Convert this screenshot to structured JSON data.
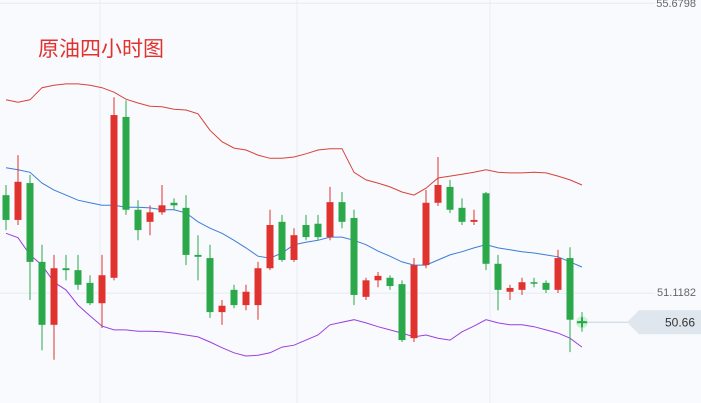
{
  "chart_data": {
    "type": "candlestick",
    "title": "原油四小时图",
    "open": [
      52.66,
      52.27,
      52.85,
      51.61,
      50.62,
      51.51,
      51.48,
      51.28,
      50.96,
      51.36,
      53.89,
      52.43,
      52.24,
      52.39,
      52.54,
      52.46,
      51.72,
      51.67,
      50.82,
      51.17,
      50.93,
      50.93,
      51.51,
      52.24,
      51.64,
      52.19,
      52.21,
      52.0,
      52.55,
      52.3,
      51.06,
      51.32,
      51.36,
      51.26,
      50.41,
      51.56,
      52.54,
      52.79,
      52.46,
      52.24,
      52.69,
      51.58,
      51.14,
      51.17,
      51.29,
      51.28,
      51.17,
      51.67,
      50.68
    ],
    "close": [
      52.27,
      52.87,
      51.61,
      50.62,
      51.51,
      51.48,
      51.25,
      50.96,
      51.4,
      53.92,
      52.43,
      52.11,
      52.39,
      52.5,
      52.5,
      51.72,
      51.69,
      50.82,
      50.92,
      50.93,
      51.14,
      51.51,
      52.19,
      51.64,
      52.03,
      52.0,
      52.0,
      52.55,
      52.24,
      51.09,
      51.32,
      51.39,
      51.23,
      50.38,
      51.56,
      52.54,
      52.82,
      52.43,
      52.24,
      52.27,
      51.58,
      51.17,
      51.2,
      51.29,
      51.28,
      51.17,
      51.67,
      50.7,
      50.66
    ],
    "high": [
      52.82,
      53.29,
      52.98,
      51.88,
      51.72,
      51.72,
      51.72,
      51.4,
      51.72,
      54.2,
      54.15,
      52.58,
      52.5,
      52.82,
      52.61,
      52.66,
      52.03,
      51.88,
      51.01,
      51.25,
      51.25,
      51.61,
      52.43,
      52.35,
      52.14,
      52.35,
      52.35,
      52.79,
      52.71,
      52.43,
      51.36,
      51.45,
      51.4,
      51.32,
      51.67,
      52.74,
      53.26,
      52.9,
      52.61,
      52.43,
      52.71,
      51.72,
      51.25,
      51.36,
      51.36,
      51.32,
      51.8,
      51.84,
      50.82
    ],
    "low": [
      52.11,
      52.19,
      51.01,
      50.22,
      50.07,
      51.32,
      51.17,
      50.93,
      50.57,
      51.32,
      52.35,
      51.95,
      52.03,
      52.35,
      52.43,
      51.56,
      51.32,
      50.73,
      50.62,
      50.88,
      50.85,
      50.7,
      51.48,
      51.61,
      51.61,
      51.95,
      51.95,
      51.95,
      52.14,
      50.93,
      51.01,
      51.21,
      51.17,
      50.35,
      50.35,
      51.51,
      52.49,
      52.38,
      52.19,
      52.19,
      51.48,
      50.85,
      51.01,
      51.09,
      51.21,
      51.12,
      51.12,
      50.19,
      50.51
    ],
    "up_color": "#e0322f",
    "down_color": "#2ba84a",
    "lines": [
      {
        "color": "#d9423a",
        "values": [
          54.16,
          54.12,
          54.16,
          54.35,
          54.39,
          54.41,
          54.41,
          54.39,
          54.35,
          54.28,
          54.17,
          54.11,
          54.06,
          54.05,
          54.01,
          54.0,
          53.94,
          53.68,
          53.5,
          53.4,
          53.37,
          53.29,
          53.24,
          53.24,
          53.26,
          53.31,
          53.37,
          53.39,
          53.39,
          53.02,
          52.9,
          52.85,
          52.79,
          52.71,
          52.66,
          52.77,
          52.93,
          52.96,
          52.99,
          53.02,
          53.06,
          53.02,
          53.01,
          53.01,
          53.02,
          53.01,
          52.96,
          52.9,
          52.82
        ]
      },
      {
        "color": "#3b7dd8",
        "values": [
          53.09,
          53.06,
          53.02,
          52.85,
          52.74,
          52.66,
          52.58,
          52.54,
          52.5,
          52.5,
          52.47,
          52.47,
          52.46,
          52.43,
          52.43,
          52.38,
          52.24,
          52.14,
          52.06,
          51.95,
          51.83,
          51.7,
          51.67,
          51.75,
          51.88,
          51.92,
          51.95,
          52.0,
          52.0,
          51.95,
          51.88,
          51.78,
          51.7,
          51.61,
          51.56,
          51.56,
          51.64,
          51.72,
          51.77,
          51.83,
          51.88,
          51.83,
          51.8,
          51.77,
          51.75,
          51.72,
          51.69,
          51.61,
          51.53
        ]
      },
      {
        "color": "#9b3fe0",
        "values": [
          52.06,
          51.99,
          51.72,
          51.56,
          51.29,
          51.17,
          50.93,
          50.76,
          50.6,
          50.54,
          50.54,
          50.52,
          50.52,
          50.51,
          50.49,
          50.46,
          50.43,
          50.35,
          50.26,
          50.18,
          50.13,
          50.14,
          50.18,
          50.27,
          50.3,
          50.38,
          50.46,
          50.62,
          50.66,
          50.7,
          50.65,
          50.59,
          50.54,
          50.49,
          50.43,
          50.46,
          50.41,
          50.38,
          50.51,
          50.6,
          50.7,
          50.65,
          50.62,
          50.62,
          50.59,
          50.54,
          50.49,
          50.41,
          50.27
        ]
      }
    ],
    "last_price": 50.66,
    "ylim": [
      49.39,
      55.73
    ],
    "yticks": [
      55.6798,
      51.1182
    ],
    "grid": true
  }
}
